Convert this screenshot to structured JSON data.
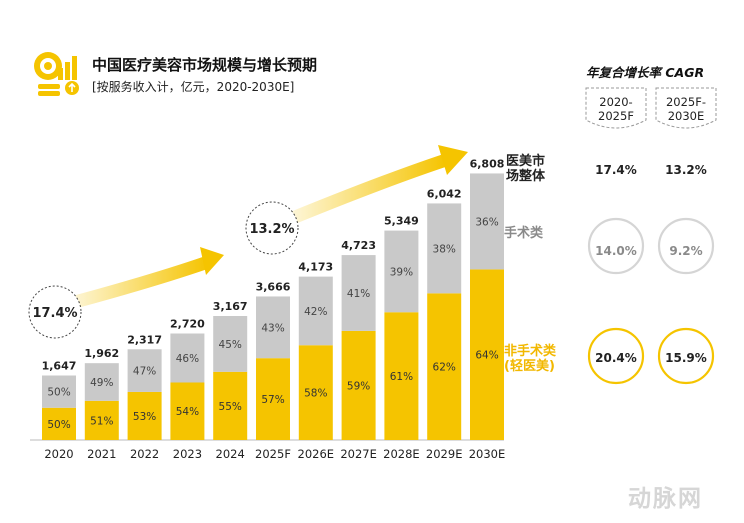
{
  "header": {
    "title": "中国医疗美容市场规模与增长预期",
    "subtitle": "[按服务收入计，亿元，2020-2030E]"
  },
  "chart_data": {
    "type": "bar",
    "stacked": true,
    "categories": [
      "2020",
      "2021",
      "2022",
      "2023",
      "2024",
      "2025F",
      "2026E",
      "2027E",
      "2028E",
      "2029E",
      "2030E"
    ],
    "totals": [
      1647,
      1962,
      2317,
      2720,
      3167,
      3666,
      4173,
      4723,
      5349,
      6042,
      6808
    ],
    "total_labels": [
      "1,647",
      "1,962",
      "2,317",
      "2,720",
      "3,167",
      "3,666",
      "4,173",
      "4,723",
      "5,349",
      "6,042",
      "6,808"
    ],
    "series": [
      {
        "name": "非手术类(轻医美)",
        "color": "#f5c400",
        "shares": [
          50,
          51,
          53,
          54,
          55,
          57,
          58,
          59,
          61,
          62,
          64
        ],
        "labels": [
          "50%",
          "51%",
          "53%",
          "54%",
          "55%",
          "57%",
          "58%",
          "59%",
          "61%",
          "62%",
          "64%"
        ]
      },
      {
        "name": "手术类",
        "color": "#c9c9c9",
        "shares": [
          50,
          49,
          47,
          46,
          45,
          43,
          42,
          41,
          39,
          38,
          36
        ],
        "labels": [
          "50%",
          "49%",
          "47%",
          "46%",
          "45%",
          "43%",
          "42%",
          "41%",
          "39%",
          "38%",
          "36%"
        ]
      }
    ],
    "ylim": [
      0,
      7000
    ],
    "growth_arrows": [
      "17.4%",
      "13.2%"
    ]
  },
  "cagr": {
    "title": "年复合增长率 CAGR",
    "periods": [
      {
        "line1": "2020-",
        "line2": "2025F"
      },
      {
        "line1": "2025F-",
        "line2": "2030E"
      }
    ],
    "rows": [
      {
        "label_line1": "医美市",
        "label_line2": "场整体",
        "values": [
          "17.4%",
          "13.2%"
        ],
        "color": "#222222"
      },
      {
        "label_line1": "手术类",
        "label_line2": "",
        "values": [
          "14.0%",
          "9.2%"
        ],
        "color": "#8a8a8a"
      },
      {
        "label_line1": "非手术类",
        "label_line2": "(轻医美)",
        "values": [
          "20.4%",
          "15.9%"
        ],
        "color": "#f2b800"
      }
    ]
  },
  "colors": {
    "accent": "#f5c400",
    "gray": "#c9c9c9"
  },
  "watermark": "动脉网"
}
